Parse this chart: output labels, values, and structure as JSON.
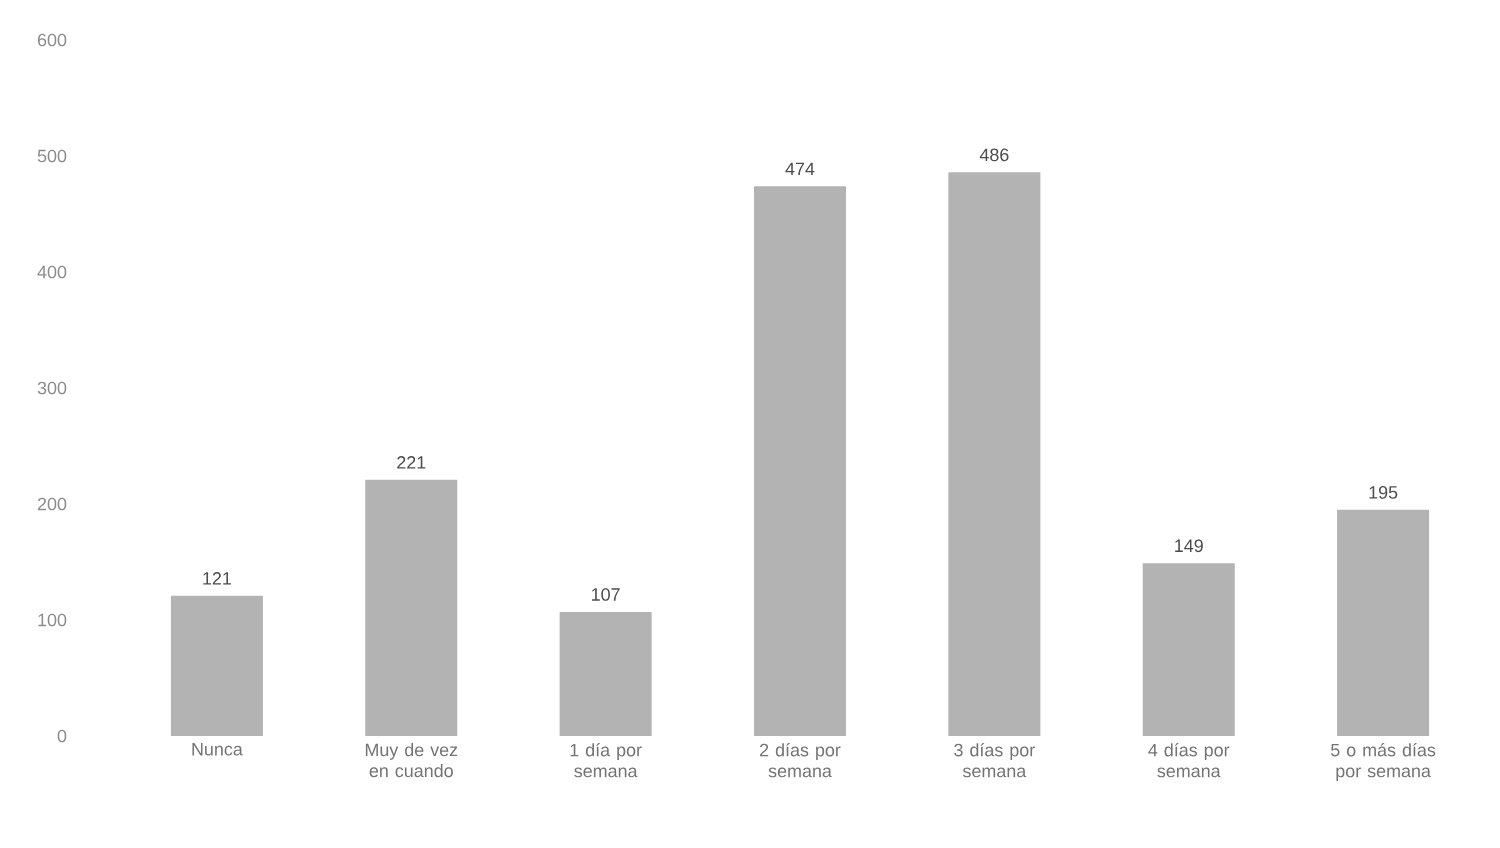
{
  "chart_data": {
    "type": "bar",
    "categories": [
      "Nunca",
      "Muy de vez en cuando",
      "1 día por semana",
      "2 días por semana",
      "3 días por semana",
      "4 días por semana",
      "5 o más días por semana"
    ],
    "values": [
      121,
      221,
      107,
      474,
      486,
      149,
      195
    ],
    "color": "#b3b3b3",
    "ylim": [
      0,
      600
    ],
    "yticks": [
      0,
      100,
      200,
      300,
      400,
      500,
      600
    ],
    "data_labels": true
  }
}
